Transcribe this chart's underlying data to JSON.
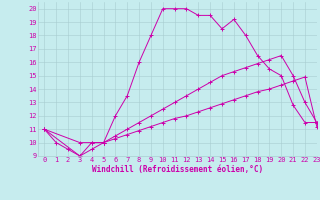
{
  "xlabel": "Windchill (Refroidissement éolien,°C)",
  "xlim": [
    -0.5,
    23
  ],
  "ylim": [
    9,
    20.5
  ],
  "xticks": [
    0,
    1,
    2,
    3,
    4,
    5,
    6,
    7,
    8,
    9,
    10,
    11,
    12,
    13,
    14,
    15,
    16,
    17,
    18,
    19,
    20,
    21,
    22,
    23
  ],
  "yticks": [
    9,
    10,
    11,
    12,
    13,
    14,
    15,
    16,
    17,
    18,
    19,
    20
  ],
  "bg_color": "#c6ecee",
  "grid_color": "#a8cdd0",
  "line_color": "#cc00aa",
  "line1_x": [
    0,
    1,
    2,
    3,
    4,
    5,
    6,
    7,
    8,
    9,
    10,
    11,
    12,
    13,
    14,
    15,
    16,
    17,
    18,
    19,
    20,
    21,
    22,
    23
  ],
  "line1_y": [
    11,
    10,
    9.5,
    9,
    10,
    10,
    12,
    13.5,
    16,
    18,
    20,
    20,
    20,
    19.5,
    19.5,
    18.5,
    19.2,
    18,
    16.5,
    15.5,
    15,
    12.8,
    11.5,
    11.5
  ],
  "line2_x": [
    0,
    3,
    4,
    5,
    6,
    7,
    8,
    9,
    10,
    11,
    12,
    13,
    14,
    15,
    16,
    17,
    18,
    19,
    20,
    21,
    22,
    23
  ],
  "line2_y": [
    11,
    10,
    10,
    10,
    10.5,
    11,
    11.5,
    12,
    12.5,
    13,
    13.5,
    14,
    14.5,
    15,
    15.3,
    15.6,
    15.9,
    16.2,
    16.5,
    15,
    13,
    11.5
  ],
  "line3_x": [
    0,
    3,
    4,
    5,
    6,
    7,
    8,
    9,
    10,
    11,
    12,
    13,
    14,
    15,
    16,
    17,
    18,
    19,
    20,
    21,
    22,
    23
  ],
  "line3_y": [
    11,
    9,
    9.5,
    10,
    10.3,
    10.6,
    10.9,
    11.2,
    11.5,
    11.8,
    12,
    12.3,
    12.6,
    12.9,
    13.2,
    13.5,
    13.8,
    14,
    14.3,
    14.6,
    14.9,
    11.2
  ],
  "tick_fontsize": 5,
  "xlabel_fontsize": 5.5
}
